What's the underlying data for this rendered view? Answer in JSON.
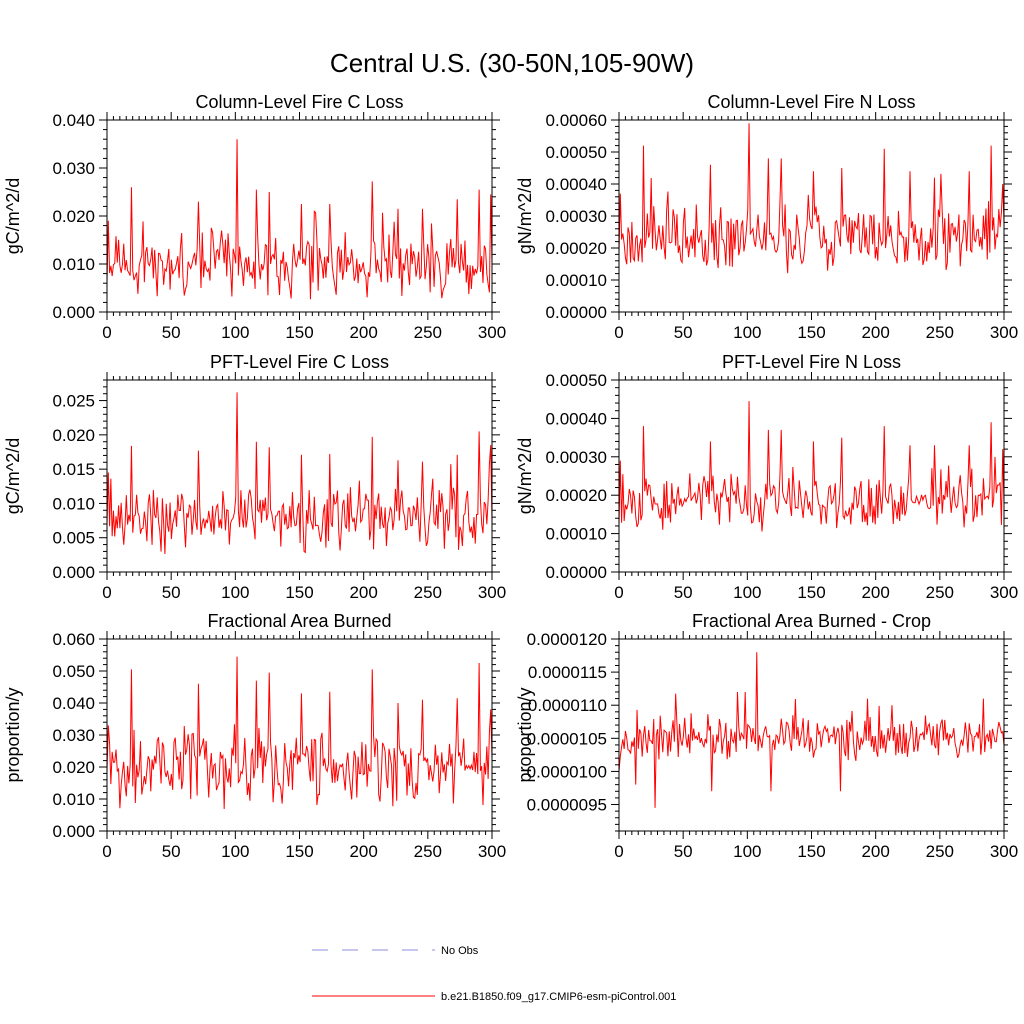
{
  "page": {
    "title": "Central U.S. (30-50N,105-90W)"
  },
  "colors": {
    "model_line": "#ff0000",
    "obs_line": "#8c8cdc",
    "axis": "#000000"
  },
  "legend": {
    "entries": [
      {
        "label": "No Obs",
        "style": "dashed",
        "color": "#8c8cdc"
      },
      {
        "label": "b.e21.B1850.f09_g17.CMIP6-esm-piControl.001",
        "style": "solid",
        "color": "#ff0000"
      }
    ]
  },
  "chart_data": [
    {
      "id": "col-fire-c",
      "type": "line",
      "title": "Column-Level Fire C Loss",
      "ylabel": "gC/m^2/d",
      "xlabel": "",
      "xlim": [
        0,
        300
      ],
      "ylim": [
        0,
        0.04
      ],
      "xticks": [
        0,
        50,
        100,
        150,
        200,
        250,
        300
      ],
      "xtick_labels": [
        "0",
        "50",
        "100",
        "150",
        "200",
        "250",
        "300"
      ],
      "yticks": [
        0,
        0.01,
        0.02,
        0.03,
        0.04
      ],
      "ytick_labels": [
        "0.000",
        "0.010",
        "0.020",
        "0.030",
        "0.040"
      ],
      "series": [
        {
          "name": "b.e21.B1850.f09_g17.CMIP6-esm-piControl.001",
          "n": 300,
          "base": 0.0096,
          "amp": 0.0062,
          "seed": 11,
          "peaks": [
            [
              1,
              0.019
            ],
            [
              19,
              0.026
            ],
            [
              71,
              0.023
            ],
            [
              101,
              0.036
            ],
            [
              116,
              0.0255
            ],
            [
              126,
              0.025
            ],
            [
              151,
              0.0225
            ],
            [
              173,
              0.0225
            ],
            [
              206,
              0.0272
            ],
            [
              226,
              0.0215
            ],
            [
              245,
              0.0215
            ],
            [
              272,
              0.0235
            ],
            [
              289,
              0.0255
            ],
            [
              298,
              0.0245
            ]
          ]
        }
      ]
    },
    {
      "id": "col-fire-n",
      "type": "line",
      "title": "Column-Level Fire N Loss",
      "ylabel": "gN/m^2/d",
      "xlabel": "",
      "xlim": [
        0,
        300
      ],
      "ylim": [
        0,
        0.0006
      ],
      "xticks": [
        0,
        50,
        100,
        150,
        200,
        250,
        300
      ],
      "xtick_labels": [
        "0",
        "50",
        "100",
        "150",
        "200",
        "250",
        "300"
      ],
      "yticks": [
        0,
        0.0001,
        0.0002,
        0.0003,
        0.0004,
        0.0005,
        0.0006
      ],
      "ytick_labels": [
        "0.00000",
        "0.00010",
        "0.00020",
        "0.00030",
        "0.00040",
        "0.00050",
        "0.00060"
      ],
      "series": [
        {
          "name": "b.e21.B1850.f09_g17.CMIP6-esm-piControl.001",
          "n": 300,
          "base": 0.00023,
          "amp": 9.5e-05,
          "seed": 23,
          "peaks": [
            [
              1,
              0.00037
            ],
            [
              19,
              0.00052
            ],
            [
              71,
              0.00046
            ],
            [
              101,
              0.00059
            ],
            [
              116,
              0.00048
            ],
            [
              126,
              0.00048
            ],
            [
              151,
              0.00044
            ],
            [
              173,
              0.00045
            ],
            [
              206,
              0.00051
            ],
            [
              226,
              0.00044
            ],
            [
              245,
              0.00042
            ],
            [
              272,
              0.00044
            ],
            [
              289,
              0.00052
            ],
            [
              298,
              0.0004
            ]
          ]
        }
      ]
    },
    {
      "id": "pft-fire-c",
      "type": "line",
      "title": "PFT-Level Fire C Loss",
      "ylabel": "gC/m^2/d",
      "xlabel": "",
      "xlim": [
        0,
        300
      ],
      "ylim": [
        0,
        0.028
      ],
      "xticks": [
        0,
        50,
        100,
        150,
        200,
        250,
        300
      ],
      "xtick_labels": [
        "0",
        "50",
        "100",
        "150",
        "200",
        "250",
        "300"
      ],
      "yticks": [
        0,
        0.005,
        0.01,
        0.015,
        0.02,
        0.025
      ],
      "ytick_labels": [
        "0.000",
        "0.005",
        "0.010",
        "0.015",
        "0.020",
        "0.025"
      ],
      "series": [
        {
          "name": "b.e21.B1850.f09_g17.CMIP6-esm-piControl.001",
          "n": 300,
          "base": 0.0076,
          "amp": 0.0045,
          "seed": 37,
          "peaks": [
            [
              1,
              0.0145
            ],
            [
              19,
              0.0184
            ],
            [
              71,
              0.0177
            ],
            [
              101,
              0.0262
            ],
            [
              116,
              0.019
            ],
            [
              126,
              0.0182
            ],
            [
              151,
              0.0171
            ],
            [
              173,
              0.0172
            ],
            [
              206,
              0.0197
            ],
            [
              226,
              0.0163
            ],
            [
              245,
              0.0161
            ],
            [
              272,
              0.0171
            ],
            [
              289,
              0.0205
            ],
            [
              298,
              0.0185
            ]
          ]
        }
      ]
    },
    {
      "id": "pft-fire-n",
      "type": "line",
      "title": "PFT-Level Fire N Loss",
      "ylabel": "gN/m^2/d",
      "xlabel": "",
      "xlim": [
        0,
        300
      ],
      "ylim": [
        0,
        0.0005
      ],
      "xticks": [
        0,
        50,
        100,
        150,
        200,
        250,
        300
      ],
      "xtick_labels": [
        "0",
        "50",
        "100",
        "150",
        "200",
        "250",
        "300"
      ],
      "yticks": [
        0,
        0.0001,
        0.0002,
        0.0003,
        0.0004,
        0.0005
      ],
      "ytick_labels": [
        "0.00000",
        "0.00010",
        "0.00020",
        "0.00030",
        "0.00040",
        "0.00050"
      ],
      "series": [
        {
          "name": "b.e21.B1850.f09_g17.CMIP6-esm-piControl.001",
          "n": 300,
          "base": 0.00018,
          "amp": 7e-05,
          "seed": 53,
          "peaks": [
            [
              1,
              0.00029
            ],
            [
              19,
              0.00038
            ],
            [
              71,
              0.00034
            ],
            [
              101,
              0.000445
            ],
            [
              116,
              0.00037
            ],
            [
              126,
              0.00037
            ],
            [
              151,
              0.00034
            ],
            [
              173,
              0.00035
            ],
            [
              206,
              0.00038
            ],
            [
              226,
              0.00033
            ],
            [
              245,
              0.00033
            ],
            [
              272,
              0.00033
            ],
            [
              289,
              0.00039
            ],
            [
              298,
              0.00032
            ]
          ]
        }
      ]
    },
    {
      "id": "frac-area",
      "type": "line",
      "title": "Fractional Area Burned",
      "ylabel": "proportion/y",
      "xlabel": "",
      "xlim": [
        0,
        300
      ],
      "ylim": [
        0,
        0.06
      ],
      "xticks": [
        0,
        50,
        100,
        150,
        200,
        250,
        300
      ],
      "xtick_labels": [
        "0",
        "50",
        "100",
        "150",
        "200",
        "250",
        "300"
      ],
      "yticks": [
        0,
        0.01,
        0.02,
        0.03,
        0.04,
        0.05,
        0.06
      ],
      "ytick_labels": [
        "0.000",
        "0.010",
        "0.020",
        "0.030",
        "0.040",
        "0.050",
        "0.060"
      ],
      "series": [
        {
          "name": "b.e21.B1850.f09_g17.CMIP6-esm-piControl.001",
          "n": 300,
          "base": 0.019,
          "amp": 0.011,
          "seed": 71,
          "peaks": [
            [
              1,
              0.033
            ],
            [
              19,
              0.0505
            ],
            [
              71,
              0.046
            ],
            [
              101,
              0.0545
            ],
            [
              116,
              0.047
            ],
            [
              126,
              0.0495
            ],
            [
              151,
              0.043
            ],
            [
              173,
              0.0435
            ],
            [
              206,
              0.0505
            ],
            [
              226,
              0.04
            ],
            [
              245,
              0.041
            ],
            [
              272,
              0.0415
            ],
            [
              289,
              0.0525
            ],
            [
              298,
              0.038
            ]
          ]
        }
      ]
    },
    {
      "id": "frac-area-crop",
      "type": "line",
      "title": "Fractional Area Burned - Crop",
      "ylabel": "proportion/y",
      "xlabel": "",
      "xlim": [
        0,
        300
      ],
      "ylim": [
        9.1e-06,
        1.2e-05
      ],
      "xticks": [
        0,
        50,
        100,
        150,
        200,
        250,
        300
      ],
      "xtick_labels": [
        "0",
        "50",
        "100",
        "150",
        "200",
        "250",
        "300"
      ],
      "yticks": [
        9.5e-06,
        1e-05,
        1.05e-05,
        1.1e-05,
        1.15e-05,
        1.2e-05
      ],
      "ytick_labels": [
        "0.0000095",
        "0.0000100",
        "0.0000105",
        "0.0000110",
        "0.0000115",
        "0.0000120"
      ],
      "series": [
        {
          "name": "b.e21.B1850.f09_g17.CMIP6-esm-piControl.001",
          "n": 300,
          "base": 1.05e-05,
          "amp": 3.2e-07,
          "seed": 97,
          "peaks": [
            [
              0,
              1e-05
            ],
            [
              13,
              9.8e-06
            ],
            [
              28,
              9.45e-06
            ],
            [
              72,
              9.7e-06
            ],
            [
              92,
              1.12e-05
            ],
            [
              98,
              1.12e-05
            ],
            [
              107,
              1.18e-05
            ],
            [
              118,
              9.7e-06
            ],
            [
              172,
              9.7e-06
            ],
            [
              193,
              1.11e-05
            ],
            [
              212,
              1.1e-05
            ],
            [
              283,
              1.11e-05
            ]
          ]
        }
      ]
    }
  ]
}
